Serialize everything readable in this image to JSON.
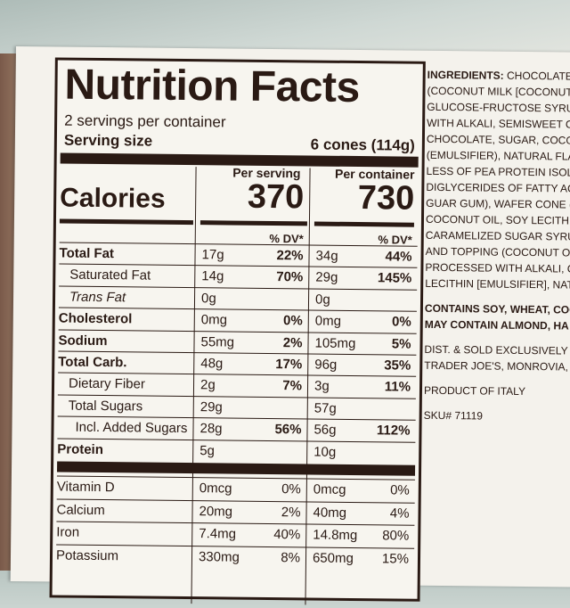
{
  "label": {
    "title": "Nutrition Facts",
    "servings_per_container": "2 servings per container",
    "serving_size_label": "Serving size",
    "serving_size_value": "6 cones (114g)",
    "calories_label": "Calories",
    "col1_header": "Per serving",
    "col2_header": "Per container",
    "calories_per_serving": "370",
    "calories_per_container": "730",
    "dv_header": "% DV*",
    "nutrients": [
      {
        "name": "Total Fat",
        "style": "bold",
        "a1": "17g",
        "p1": "22%",
        "a2": "34g",
        "p2": "44%"
      },
      {
        "name": "Saturated Fat",
        "style": "i1",
        "a1": "14g",
        "p1": "70%",
        "a2": "29g",
        "p2": "145%"
      },
      {
        "name": "Trans Fat",
        "style": "i1",
        "a1": "0g",
        "p1": "",
        "a2": "0g",
        "p2": ""
      },
      {
        "name": "Cholesterol",
        "style": "bold",
        "a1": "0mg",
        "p1": "0%",
        "a2": "0mg",
        "p2": "0%"
      },
      {
        "name": "Sodium",
        "style": "bold",
        "a1": "55mg",
        "p1": "2%",
        "a2": "105mg",
        "p2": "5%"
      },
      {
        "name": "Total Carb.",
        "style": "bold",
        "a1": "48g",
        "p1": "17%",
        "a2": "96g",
        "p2": "35%"
      },
      {
        "name": "Dietary Fiber",
        "style": "i1",
        "a1": "2g",
        "p1": "7%",
        "a2": "3g",
        "p2": "11%"
      },
      {
        "name": "Total Sugars",
        "style": "i1",
        "a1": "29g",
        "p1": "",
        "a2": "57g",
        "p2": ""
      },
      {
        "name": "Incl. Added Sugars",
        "style": "i2",
        "a1": "28g",
        "p1": "56%",
        "a2": "56g",
        "p2": "112%"
      },
      {
        "name": "Protein",
        "style": "bold",
        "a1": "5g",
        "p1": "",
        "a2": "10g",
        "p2": ""
      }
    ],
    "vitamins": [
      {
        "name": "Vitamin D",
        "a1": "0mcg",
        "p1": "0%",
        "a2": "0mcg",
        "p2": "0%"
      },
      {
        "name": "Calcium",
        "a1": "20mg",
        "p1": "2%",
        "a2": "40mg",
        "p2": "4%"
      },
      {
        "name": "Iron",
        "a1": "7.4mg",
        "p1": "40%",
        "a2": "14.8mg",
        "p2": "80%"
      },
      {
        "name": "Potassium",
        "a1": "330mg",
        "p1": "8%",
        "a2": "650mg",
        "p2": "15%"
      }
    ]
  },
  "ingredients": {
    "lines": [
      "CHOCOLATE CO",
      "(COCONUT MILK [COCONUT, W",
      "GLUCOSE-FRUCTOSE SYRUP, SU",
      "WITH ALKALI, SEMISWEET CHO",
      "CHOCOLATE, SUGAR, COCOA B",
      "(EMULSIFIER), NATURAL FLAVO",
      "LESS OF PEA PROTEIN ISOLATE,",
      "DIGLYCERIDES OF FATTY ACIDS",
      "GUAR GUM), WAFER CONE (W",
      "COCONUT OIL, SOY LECITHIN",
      "CARAMELIZED SUGAR SYRUP)",
      "AND TOPPING (COCONUT OIL",
      "PROCESSED WITH ALKALI, CO",
      "LECITHIN [EMULSIFIER], NATU"
    ],
    "heading": "INGREDIENTS:",
    "contains_lines": [
      "CONTAINS SOY, WHEAT, COC",
      "MAY CONTAIN ALMOND, HA"
    ],
    "dist_lines": [
      "DIST. & SOLD EXCLUSIVELY BY",
      "TRADER JOE'S, MONROVIA, C"
    ],
    "product_of": "PRODUCT OF ITALY",
    "sku": "SKU# 71119"
  }
}
